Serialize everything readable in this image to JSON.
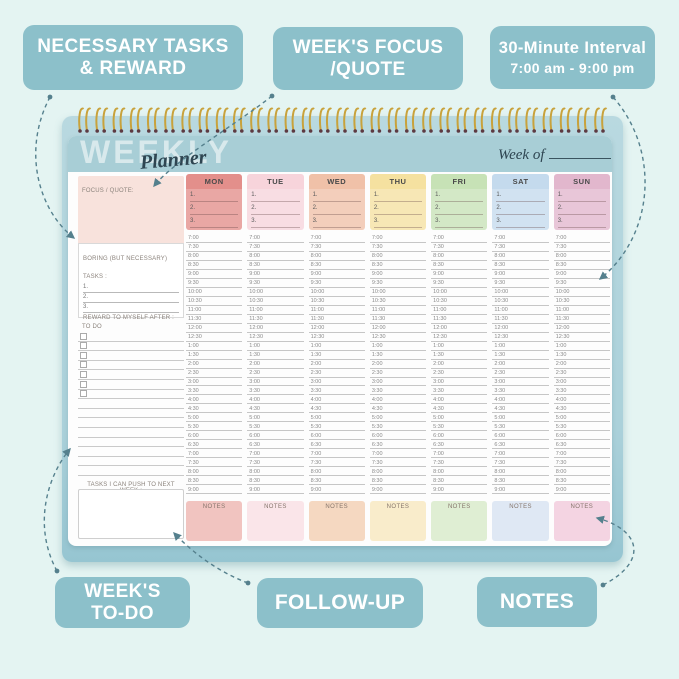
{
  "callouts": {
    "necessary_tasks": {
      "line1": "NECESSARY TASKS",
      "line2": "& REWARD"
    },
    "weeks_focus": {
      "line1": "WEEK'S FOCUS",
      "line2": "/QUOTE"
    },
    "interval": {
      "line1": "30-Minute Interval",
      "line2": "7:00 am - 9:00 pm"
    },
    "weeks_todo": {
      "line1": "WEEK'S",
      "line2": "TO-DO"
    },
    "follow_up": {
      "label": "FOLLOW-UP"
    },
    "notes": {
      "label": "NOTES"
    }
  },
  "planner": {
    "title": "WEEKLY",
    "subtitle": "Planner",
    "week_of_label": "Week of",
    "sidebar": {
      "focus_label": "FOCUS / QUOTE:",
      "boring_label": "BORING (BUT NECESSARY) TASKS :",
      "numbers": [
        "1.",
        "2.",
        "3."
      ],
      "reward_label": "REWARD TO MYSELF AFTER :",
      "todo_label": "TO DO",
      "push_label": "TASKS I CAN PUSH TO NEXT WEEK :"
    },
    "columns": {
      "priority_numbers": [
        "1.",
        "2.",
        "3."
      ],
      "times": [
        "7:00",
        "7:30",
        "8:00",
        "8:30",
        "9:00",
        "9:30",
        "10:00",
        "10:30",
        "11:00",
        "11:30",
        "12:00",
        "12:30",
        "1:00",
        "1:30",
        "2:00",
        "2:30",
        "3:00",
        "3:30",
        "4:00",
        "4:30",
        "5:00",
        "5:30",
        "6:00",
        "6:30",
        "7:00",
        "7:30",
        "8:00",
        "8:30",
        "9:00"
      ],
      "notes_label": "NOTES",
      "days": [
        {
          "label": "MON",
          "header": "#e38f8b",
          "notes": "#f1c4c0"
        },
        {
          "label": "TUE",
          "header": "#f7d4db",
          "notes": "#fae5e9"
        },
        {
          "label": "WED",
          "header": "#f0c1a8",
          "notes": "#f5d8c1"
        },
        {
          "label": "THU",
          "header": "#f5e1a0",
          "notes": "#f9eccb"
        },
        {
          "label": "FRI",
          "header": "#c7e2b6",
          "notes": "#dfeed3"
        },
        {
          "label": "SAT",
          "header": "#c4daed",
          "notes": "#dfe8f4"
        },
        {
          "label": "SUN",
          "header": "#e2b7cd",
          "notes": "#f4d4e2"
        }
      ]
    }
  },
  "colors": {
    "callout": "#8cc0ca",
    "header_band": "#a8ced6",
    "background": "#e4f4f2",
    "arrow": "#55808d",
    "spiral_wire": "#c8a23c",
    "spiral_tip": "#5d3a42"
  }
}
